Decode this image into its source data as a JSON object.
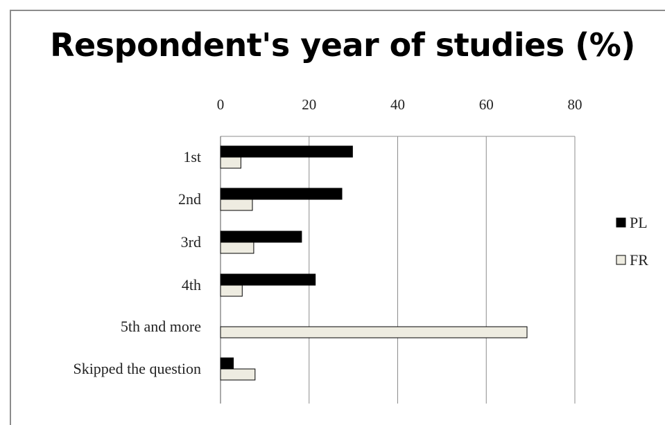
{
  "chart_data": {
    "type": "bar",
    "orientation": "horizontal",
    "title": "Respondent's year of studies (%)",
    "categories": [
      "1st",
      "2nd",
      "3rd",
      "4th",
      "5th and more",
      "Skipped the question"
    ],
    "series": [
      {
        "name": "PL",
        "values": [
          29.8,
          27.4,
          18.3,
          21.4,
          0,
          2.9
        ],
        "color": "#000000"
      },
      {
        "name": "FR",
        "values": [
          4.6,
          7.2,
          7.5,
          4.9,
          69.2,
          7.8
        ],
        "color": "#eeece1"
      }
    ],
    "xlim": [
      0,
      80
    ],
    "xticks": [
      "0",
      "20",
      "40",
      "60",
      "80"
    ],
    "xaxis_position": "top",
    "grid": true,
    "legend_position": "right"
  }
}
